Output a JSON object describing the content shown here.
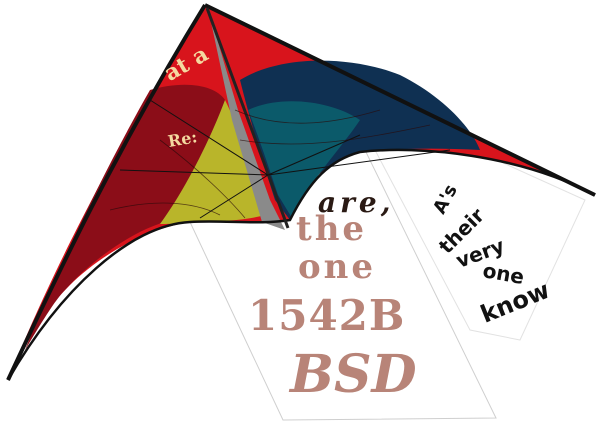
{
  "kite": {
    "colors": {
      "frame": "#111111",
      "sail_red": "#d8141c",
      "sail_dark_red": "#8b0d18",
      "sail_teal": "#0b5a6a",
      "sail_navy": "#0f3052",
      "sail_olive": "#b9b52a",
      "spine_grey": "#8a8a8a",
      "sail_text": "#f4d9a0"
    },
    "sail_text_top": "at a",
    "sail_text_left": "Re:"
  },
  "center_panel": {
    "lines": [
      "are,",
      "the",
      "one",
      "1542B",
      "BSD"
    ],
    "text_color": "#b88478",
    "border_color": "#cfcfcf"
  },
  "right_panel": {
    "lines": [
      "A's",
      "their",
      "very",
      "one",
      "know"
    ],
    "text_color": "#111111"
  }
}
